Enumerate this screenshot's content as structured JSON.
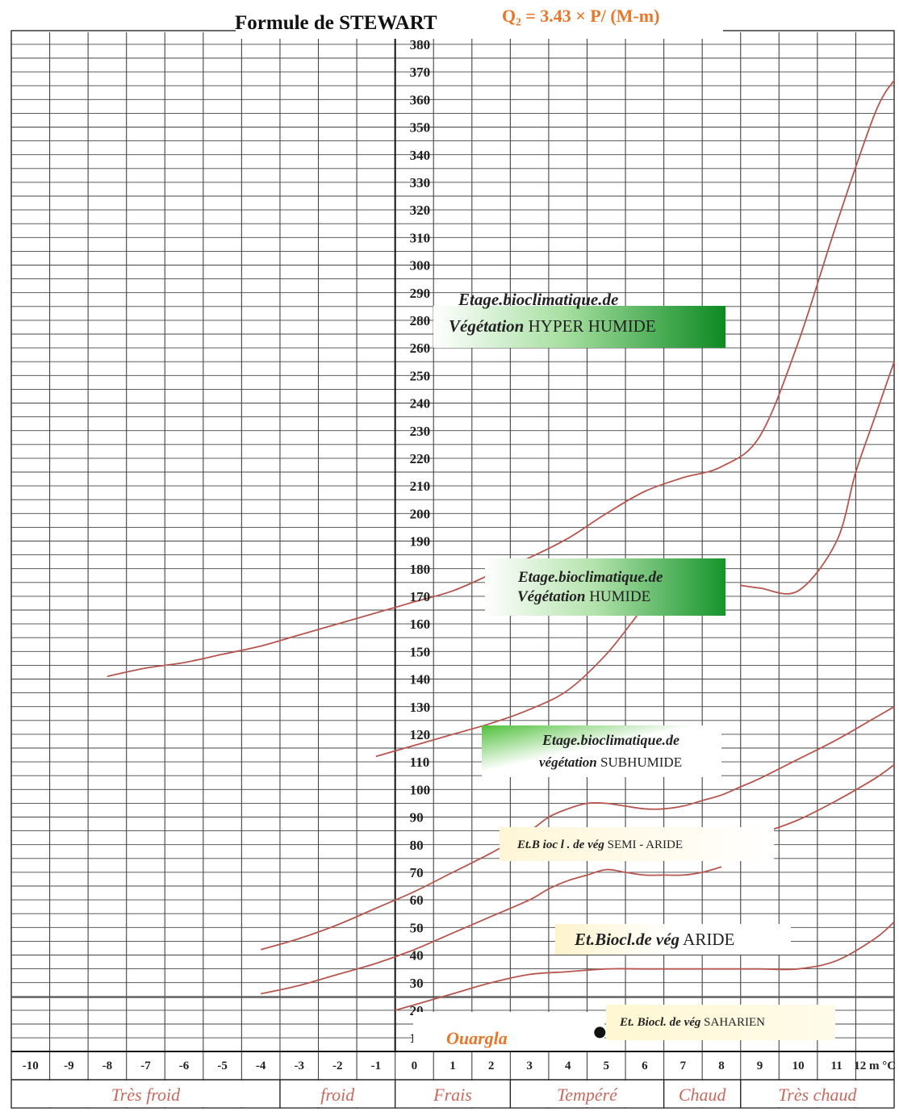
{
  "chart_data": {
    "type": "line",
    "title": "Formule de STEWART",
    "formula": "Q₂ = 3.43 × P/ (M-m)",
    "xlabel": "",
    "ylabel": "",
    "x_unit": "m °C",
    "xlim": [
      -10.5,
      12.5
    ],
    "y_ticks": [
      10,
      20,
      30,
      40,
      50,
      60,
      70,
      80,
      90,
      100,
      110,
      120,
      130,
      140,
      150,
      160,
      170,
      180,
      190,
      200,
      210,
      220,
      230,
      240,
      250,
      260,
      280,
      290,
      300,
      310,
      320,
      330,
      340,
      350,
      360,
      370,
      380
    ],
    "x_ticks": [
      "-10",
      "-9",
      "-8",
      "-7",
      "-6",
      "-5",
      "-4",
      "-3",
      "-2",
      "-1",
      "0",
      "1",
      "2",
      "3",
      "4",
      "5",
      "6",
      "7",
      "8",
      "9",
      "10",
      "11",
      "12 m °C"
    ],
    "grid": true,
    "temperature_zones": [
      {
        "label": "Très froid",
        "from": -10.5,
        "to": -3.5
      },
      {
        "label": "froid",
        "from": -3.5,
        "to": -0.5
      },
      {
        "label": "Frais",
        "from": -0.5,
        "to": 2.5
      },
      {
        "label": "Tempéré",
        "from": 2.5,
        "to": 6.5
      },
      {
        "label": "Chaud",
        "from": 6.5,
        "to": 8.5
      },
      {
        "label": "Très chaud",
        "from": 8.5,
        "to": 12.5
      }
    ],
    "boundary_curves": [
      {
        "x": [
          -8.0,
          -7.0,
          -6.0,
          -5.0,
          -4.0,
          -3.0,
          -2.0,
          -1.0,
          0.0,
          1.0,
          2.0,
          3.0,
          4.0,
          5.0,
          6.0,
          7.0,
          8.0,
          9.0,
          10.0,
          11.0,
          12.0,
          12.5
        ],
        "y": [
          141,
          144,
          146,
          149,
          152,
          156,
          160,
          164,
          168,
          172,
          178,
          184,
          191,
          200,
          208,
          213,
          217,
          228,
          262,
          305,
          345,
          357
        ]
      },
      {
        "x": [
          -1.0,
          0.0,
          1.0,
          2.0,
          3.0,
          4.0,
          5.0,
          5.8
        ],
        "y": [
          112,
          116,
          120,
          124,
          129,
          136,
          149,
          163
        ]
      },
      {
        "x": [
          8.5,
          9.0,
          10.0,
          11.0,
          11.5,
          12.0,
          12.5
        ],
        "y": [
          174,
          173,
          172,
          190,
          215,
          235,
          255
        ]
      },
      {
        "x": [
          -4.0,
          -3.0,
          -2.0,
          -1.0,
          0.0,
          1.0,
          2.0,
          3.0,
          3.5,
          4.0,
          4.5,
          5.0,
          5.5,
          6.0,
          6.5,
          7.0,
          7.5,
          8.0,
          8.5,
          9.0,
          10.0,
          11.0,
          12.0,
          12.5
        ],
        "y": [
          42,
          46,
          51,
          57,
          63,
          70,
          77,
          85,
          90,
          93,
          95,
          95,
          94,
          93,
          93,
          94,
          96,
          98,
          101,
          104,
          111,
          118,
          126,
          130
        ]
      },
      {
        "x": [
          -4.0,
          -3.0,
          -2.0,
          -1.0,
          0.0,
          1.0,
          2.0,
          3.0,
          3.5,
          4.0,
          4.5,
          5.0,
          5.5,
          6.0,
          6.5,
          7.0,
          7.5,
          8.0
        ],
        "y": [
          26,
          29,
          33,
          37,
          42,
          48,
          54,
          60,
          64,
          67,
          69,
          71,
          70,
          69,
          69,
          69,
          70,
          72
        ]
      },
      {
        "x": [
          7.5,
          8.0,
          9.0,
          10.0,
          11.0,
          12.0,
          12.5
        ],
        "y": [
          78,
          80,
          84,
          89,
          96,
          104,
          109
        ]
      },
      {
        "x": [
          -0.5,
          0.0,
          1.0,
          2.0,
          3.0,
          4.0,
          5.0,
          6.0,
          7.0,
          8.0,
          9.0,
          10.0,
          11.0,
          12.0,
          12.5
        ],
        "y": [
          20,
          22,
          26,
          30,
          33,
          34,
          35,
          35,
          35,
          35,
          35,
          35,
          38,
          46,
          52
        ]
      }
    ],
    "zones": [
      {
        "line1": "Etage.bioclimatique.de",
        "line2": "Végétation",
        "line2b": " HYPER HUMIDE"
      },
      {
        "line1": "Etage.bioclimatique.de",
        "line2": "Végétation",
        "line2b": " HUMIDE"
      },
      {
        "line1": "Etage.bioclimatique.de",
        "line2": "végétation",
        "line2b": " SUBHUMIDE"
      },
      {
        "line1": "Et.B ioc l . de vég",
        "line1b": " SEMI  - ARIDE"
      },
      {
        "line1": "Et.Biocl.de vég",
        "line1b": " ARIDE"
      },
      {
        "line1": "Et. Biocl. de vég",
        "line1b": " SAHARIEN"
      }
    ],
    "station": {
      "name": "Ouargla",
      "x": 5.0,
      "y": 12
    }
  }
}
